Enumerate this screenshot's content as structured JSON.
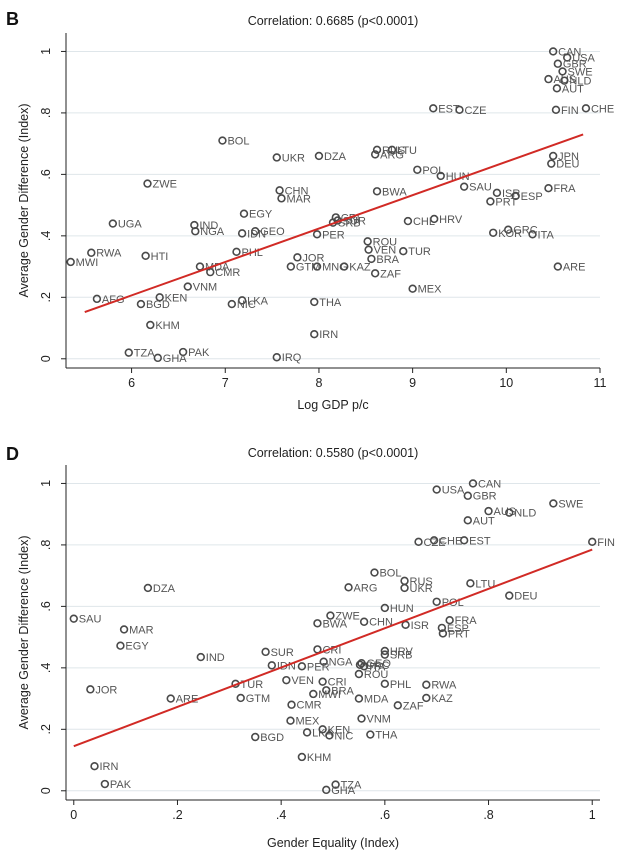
{
  "chart_data": [
    {
      "panel": "B",
      "type": "scatter",
      "title": "Correlation: 0.6685 (p<0.0001)",
      "xlabel": "Log GDP p/c",
      "ylabel": "Average Gender Difference (Index)",
      "xlim": [
        5.3,
        11.0
      ],
      "ylim": [
        -0.03,
        1.06
      ],
      "xticks": [
        6,
        7,
        8,
        9,
        10,
        11
      ],
      "xtick_labels": [
        "6",
        "7",
        "8",
        "9",
        "10",
        "11"
      ],
      "yticks": [
        0,
        0.2,
        0.4,
        0.6,
        0.8,
        1.0
      ],
      "ytick_labels": [
        "0",
        ".2",
        ".4",
        ".6",
        ".8",
        "1"
      ],
      "grid": true,
      "fit_line": {
        "x": [
          5.5,
          10.82
        ],
        "y": [
          0.152,
          0.73
        ]
      },
      "points": [
        {
          "label": "CAN",
          "x": 10.5,
          "y": 1.0
        },
        {
          "label": "USA",
          "x": 10.65,
          "y": 0.98
        },
        {
          "label": "GBR",
          "x": 10.55,
          "y": 0.96
        },
        {
          "label": "SWE",
          "x": 10.6,
          "y": 0.935
        },
        {
          "label": "AUS",
          "x": 10.45,
          "y": 0.91
        },
        {
          "label": "NLD",
          "x": 10.62,
          "y": 0.905
        },
        {
          "label": "AUT",
          "x": 10.54,
          "y": 0.88
        },
        {
          "label": "CHE",
          "x": 10.85,
          "y": 0.815
        },
        {
          "label": "FIN",
          "x": 10.53,
          "y": 0.81
        },
        {
          "label": "EST",
          "x": 9.22,
          "y": 0.815
        },
        {
          "label": "CZE",
          "x": 9.5,
          "y": 0.81
        },
        {
          "label": "BOL",
          "x": 6.97,
          "y": 0.71
        },
        {
          "label": "RUS",
          "x": 8.62,
          "y": 0.68
        },
        {
          "label": "LTU",
          "x": 8.78,
          "y": 0.68
        },
        {
          "label": "ARG",
          "x": 8.6,
          "y": 0.665
        },
        {
          "label": "UKR",
          "x": 7.55,
          "y": 0.655
        },
        {
          "label": "DZA",
          "x": 8.0,
          "y": 0.66
        },
        {
          "label": "JPN",
          "x": 10.5,
          "y": 0.66
        },
        {
          "label": "DEU",
          "x": 10.48,
          "y": 0.635
        },
        {
          "label": "POL",
          "x": 9.05,
          "y": 0.615
        },
        {
          "label": "HUN",
          "x": 9.3,
          "y": 0.595
        },
        {
          "label": "ZWE",
          "x": 6.17,
          "y": 0.57
        },
        {
          "label": "SAU",
          "x": 9.55,
          "y": 0.56
        },
        {
          "label": "FRA",
          "x": 10.45,
          "y": 0.555
        },
        {
          "label": "CHN",
          "x": 7.58,
          "y": 0.548
        },
        {
          "label": "BWA",
          "x": 8.62,
          "y": 0.545
        },
        {
          "label": "ISR",
          "x": 9.9,
          "y": 0.54
        },
        {
          "label": "ESP",
          "x": 10.1,
          "y": 0.53
        },
        {
          "label": "MAR",
          "x": 7.6,
          "y": 0.522
        },
        {
          "label": "PRT",
          "x": 9.83,
          "y": 0.512
        },
        {
          "label": "EGY",
          "x": 7.2,
          "y": 0.472
        },
        {
          "label": "CRI",
          "x": 8.18,
          "y": 0.46
        },
        {
          "label": "HRV",
          "x": 9.23,
          "y": 0.455
        },
        {
          "label": "SUR",
          "x": 8.2,
          "y": 0.45
        },
        {
          "label": "CHL",
          "x": 8.95,
          "y": 0.448
        },
        {
          "label": "SRB",
          "x": 8.15,
          "y": 0.443
        },
        {
          "label": "UGA",
          "x": 5.8,
          "y": 0.44
        },
        {
          "label": "IND",
          "x": 6.67,
          "y": 0.435
        },
        {
          "label": "GEO",
          "x": 7.32,
          "y": 0.415
        },
        {
          "label": "NGA",
          "x": 6.68,
          "y": 0.415
        },
        {
          "label": "GRC",
          "x": 10.02,
          "y": 0.42
        },
        {
          "label": "KOR",
          "x": 9.86,
          "y": 0.41
        },
        {
          "label": "IDN",
          "x": 7.18,
          "y": 0.408
        },
        {
          "label": "PER",
          "x": 7.98,
          "y": 0.405
        },
        {
          "label": "ITA",
          "x": 10.28,
          "y": 0.405
        },
        {
          "label": "ROU",
          "x": 8.52,
          "y": 0.382
        },
        {
          "label": "RWA",
          "x": 5.57,
          "y": 0.345
        },
        {
          "label": "PHL",
          "x": 7.12,
          "y": 0.348
        },
        {
          "label": "VEN",
          "x": 8.53,
          "y": 0.355
        },
        {
          "label": "TUR",
          "x": 8.9,
          "y": 0.35
        },
        {
          "label": "HTI",
          "x": 6.15,
          "y": 0.335
        },
        {
          "label": "JOR",
          "x": 7.77,
          "y": 0.33
        },
        {
          "label": "BRA",
          "x": 8.56,
          "y": 0.325
        },
        {
          "label": "MWI",
          "x": 5.35,
          "y": 0.315
        },
        {
          "label": "MDA",
          "x": 6.73,
          "y": 0.3
        },
        {
          "label": "GTM",
          "x": 7.7,
          "y": 0.3
        },
        {
          "label": "MNG",
          "x": 7.98,
          "y": 0.3
        },
        {
          "label": "KAZ",
          "x": 8.27,
          "y": 0.3
        },
        {
          "label": "ARE",
          "x": 10.55,
          "y": 0.3
        },
        {
          "label": "CMR",
          "x": 6.84,
          "y": 0.282
        },
        {
          "label": "ZAF",
          "x": 8.6,
          "y": 0.278
        },
        {
          "label": "VNM",
          "x": 6.6,
          "y": 0.235
        },
        {
          "label": "MEX",
          "x": 9.0,
          "y": 0.228
        },
        {
          "label": "AFG",
          "x": 5.63,
          "y": 0.195
        },
        {
          "label": "KEN",
          "x": 6.3,
          "y": 0.2
        },
        {
          "label": "LKA",
          "x": 7.18,
          "y": 0.19
        },
        {
          "label": "THA",
          "x": 7.95,
          "y": 0.185
        },
        {
          "label": "BGD",
          "x": 6.1,
          "y": 0.178
        },
        {
          "label": "NIC",
          "x": 7.07,
          "y": 0.178
        },
        {
          "label": "KHM",
          "x": 6.2,
          "y": 0.11
        },
        {
          "label": "IRN",
          "x": 7.95,
          "y": 0.08
        },
        {
          "label": "TZA",
          "x": 5.97,
          "y": 0.02
        },
        {
          "label": "PAK",
          "x": 6.55,
          "y": 0.022
        },
        {
          "label": "GHA",
          "x": 6.28,
          "y": 0.003
        },
        {
          "label": "IRQ",
          "x": 7.55,
          "y": 0.005
        }
      ]
    },
    {
      "panel": "D",
      "type": "scatter",
      "title": "Correlation: 0.5580 (p<0.0001)",
      "xlabel": "Gender Equality (Index)",
      "ylabel": "Average Gender Difference (Index)",
      "xlim": [
        -0.015,
        1.015
      ],
      "ylim": [
        -0.03,
        1.06
      ],
      "xticks": [
        0,
        0.2,
        0.4,
        0.6,
        0.8,
        1.0
      ],
      "xtick_labels": [
        "0",
        ".2",
        ".4",
        ".6",
        ".8",
        "1"
      ],
      "yticks": [
        0,
        0.2,
        0.4,
        0.6,
        0.8,
        1.0
      ],
      "ytick_labels": [
        "0",
        ".2",
        ".4",
        ".6",
        ".8",
        "1"
      ],
      "grid": true,
      "fit_line": {
        "x": [
          0.0,
          1.0
        ],
        "y": [
          0.145,
          0.785
        ]
      },
      "points": [
        {
          "label": "CAN",
          "x": 0.77,
          "y": 1.0
        },
        {
          "label": "USA",
          "x": 0.7,
          "y": 0.98
        },
        {
          "label": "GBR",
          "x": 0.76,
          "y": 0.96
        },
        {
          "label": "SWE",
          "x": 0.925,
          "y": 0.935
        },
        {
          "label": "AUS",
          "x": 0.8,
          "y": 0.91
        },
        {
          "label": "NLD",
          "x": 0.84,
          "y": 0.905
        },
        {
          "label": "AUT",
          "x": 0.76,
          "y": 0.88
        },
        {
          "label": "FIN",
          "x": 1.0,
          "y": 0.81
        },
        {
          "label": "CZE",
          "x": 0.665,
          "y": 0.81
        },
        {
          "label": "CHE",
          "x": 0.695,
          "y": 0.815
        },
        {
          "label": "EST",
          "x": 0.753,
          "y": 0.815
        },
        {
          "label": "DZA",
          "x": 0.143,
          "y": 0.66
        },
        {
          "label": "BOL",
          "x": 0.58,
          "y": 0.71
        },
        {
          "label": "RUS",
          "x": 0.638,
          "y": 0.683
        },
        {
          "label": "UKR",
          "x": 0.638,
          "y": 0.66
        },
        {
          "label": "ARG",
          "x": 0.53,
          "y": 0.662
        },
        {
          "label": "LTU",
          "x": 0.765,
          "y": 0.675
        },
        {
          "label": "DEU",
          "x": 0.84,
          "y": 0.635
        },
        {
          "label": "POL",
          "x": 0.7,
          "y": 0.615
        },
        {
          "label": "HUN",
          "x": 0.6,
          "y": 0.595
        },
        {
          "label": "ZWE",
          "x": 0.495,
          "y": 0.57
        },
        {
          "label": "SAU",
          "x": 0.0,
          "y": 0.56
        },
        {
          "label": "FRA",
          "x": 0.725,
          "y": 0.555
        },
        {
          "label": "CHN",
          "x": 0.56,
          "y": 0.55
        },
        {
          "label": "BWA",
          "x": 0.47,
          "y": 0.545
        },
        {
          "label": "ISR",
          "x": 0.64,
          "y": 0.54
        },
        {
          "label": "ESP",
          "x": 0.71,
          "y": 0.53
        },
        {
          "label": "MAR",
          "x": 0.097,
          "y": 0.525
        },
        {
          "label": "PRT",
          "x": 0.712,
          "y": 0.512
        },
        {
          "label": "EGY",
          "x": 0.09,
          "y": 0.472
        },
        {
          "label": "SUR",
          "x": 0.37,
          "y": 0.452
        },
        {
          "label": "CRI",
          "x": 0.47,
          "y": 0.46
        },
        {
          "label": "HRV",
          "x": 0.6,
          "y": 0.455
        },
        {
          "label": "SRB",
          "x": 0.6,
          "y": 0.443
        },
        {
          "label": "IND",
          "x": 0.245,
          "y": 0.435
        },
        {
          "label": "GEO",
          "x": 0.555,
          "y": 0.415
        },
        {
          "label": "NGA",
          "x": 0.482,
          "y": 0.42
        },
        {
          "label": "IDN",
          "x": 0.382,
          "y": 0.408
        },
        {
          "label": "PER",
          "x": 0.44,
          "y": 0.405
        },
        {
          "label": "GRC",
          "x": 0.552,
          "y": 0.41
        },
        {
          "label": "ITA",
          "x": 0.56,
          "y": 0.405
        },
        {
          "label": "ROU",
          "x": 0.55,
          "y": 0.38
        },
        {
          "label": "JOR",
          "x": 0.032,
          "y": 0.33
        },
        {
          "label": "TUR",
          "x": 0.312,
          "y": 0.348
        },
        {
          "label": "VEN",
          "x": 0.41,
          "y": 0.36
        },
        {
          "label": "CRI",
          "x": 0.48,
          "y": 0.355
        },
        {
          "label": "PHL",
          "x": 0.6,
          "y": 0.348
        },
        {
          "label": "RWA",
          "x": 0.68,
          "y": 0.345
        },
        {
          "label": "BRA",
          "x": 0.487,
          "y": 0.327
        },
        {
          "label": "MWI",
          "x": 0.462,
          "y": 0.315
        },
        {
          "label": "ARE",
          "x": 0.187,
          "y": 0.3
        },
        {
          "label": "GTM",
          "x": 0.322,
          "y": 0.302
        },
        {
          "label": "MDA",
          "x": 0.55,
          "y": 0.3
        },
        {
          "label": "KAZ",
          "x": 0.68,
          "y": 0.302
        },
        {
          "label": "CMR",
          "x": 0.42,
          "y": 0.28
        },
        {
          "label": "ZAF",
          "x": 0.625,
          "y": 0.278
        },
        {
          "label": "MEX",
          "x": 0.418,
          "y": 0.228
        },
        {
          "label": "VNM",
          "x": 0.555,
          "y": 0.235
        },
        {
          "label": "LKA",
          "x": 0.45,
          "y": 0.19
        },
        {
          "label": "KEN",
          "x": 0.48,
          "y": 0.2
        },
        {
          "label": "BGD",
          "x": 0.35,
          "y": 0.175
        },
        {
          "label": "NIC",
          "x": 0.493,
          "y": 0.18
        },
        {
          "label": "THA",
          "x": 0.572,
          "y": 0.183
        },
        {
          "label": "KHM",
          "x": 0.44,
          "y": 0.11
        },
        {
          "label": "IRN",
          "x": 0.04,
          "y": 0.08
        },
        {
          "label": "PAK",
          "x": 0.06,
          "y": 0.022
        },
        {
          "label": "TZA",
          "x": 0.505,
          "y": 0.02
        },
        {
          "label": "GHA",
          "x": 0.487,
          "y": 0.003
        }
      ]
    }
  ]
}
